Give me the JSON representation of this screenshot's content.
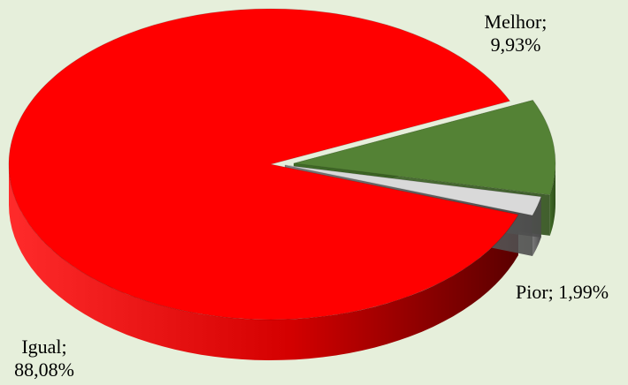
{
  "chart_data": {
    "type": "pie",
    "title": "",
    "slices": [
      {
        "label": "Igual",
        "value": 88.08,
        "display": "88,08%",
        "color": "#ff0000"
      },
      {
        "label": "Melhor",
        "value": 9.93,
        "display": "9,93%",
        "color": "#548235"
      },
      {
        "label": "Pior",
        "value": 1.99,
        "display": "1,99%",
        "color": "#d9d9d9"
      }
    ],
    "legend": "none"
  },
  "labels": {
    "melhor_name": "Melhor;",
    "melhor_value": "9,93%",
    "pior": "Pior; 1,99%",
    "igual_name": "Igual;",
    "igual_value": "88,08%"
  },
  "colors": {
    "background": "#e6efdb",
    "igual": "#ff0000",
    "melhor": "#548235",
    "pior": "#d9d9d9"
  }
}
